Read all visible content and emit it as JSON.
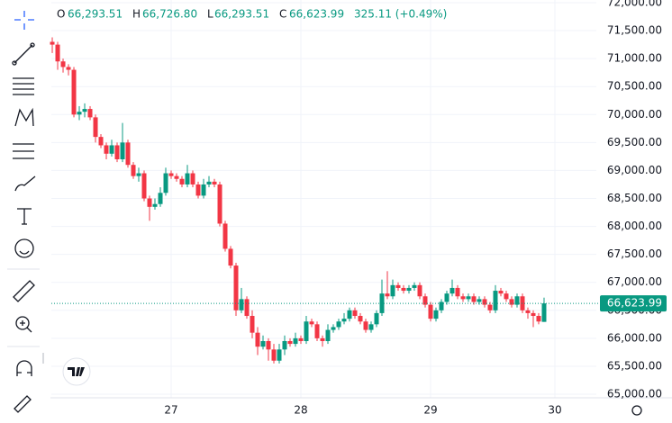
{
  "chart_data": {
    "type": "candlestick",
    "legend": {
      "open_label": "O",
      "open": "66,293.51",
      "high_label": "H",
      "high": "66,726.80",
      "low_label": "L",
      "low": "66,293.51",
      "close_label": "C",
      "close": "66,623.99",
      "change": "325.11 (+0.49%)"
    },
    "up_color": "#089981",
    "down_color": "#f23645",
    "open": [
      71300,
      71250,
      70950,
      70850,
      70800,
      70000,
      70050,
      70100,
      69950,
      69600,
      69450,
      69300,
      69450,
      69200,
      69500,
      69100,
      68900,
      68950,
      68500,
      68350,
      68400,
      68600,
      68950,
      68900,
      68850,
      68750,
      68950,
      68750,
      68550,
      68750,
      68800,
      68750,
      68050,
      67600,
      67300,
      66500,
      66700,
      66400,
      66100,
      65850,
      65950,
      65800,
      65600,
      65800,
      65950,
      65900,
      66000,
      65950,
      66300,
      66250,
      66000,
      65950,
      66150,
      66200,
      66300,
      66350,
      66500,
      66400,
      66300,
      66150,
      66250,
      66450,
      66800,
      66750,
      66950,
      66900,
      66850,
      66900,
      66950,
      66750,
      66600,
      66350,
      66500,
      66650,
      66800,
      66900,
      66750,
      66700,
      66750,
      66650,
      66700,
      66600,
      66500,
      66850,
      66800,
      66700,
      66600,
      66750,
      66500,
      66450,
      66400,
      66293.51
    ],
    "high": [
      71380,
      71300,
      71000,
      70900,
      70850,
      70150,
      70200,
      70150,
      70000,
      69650,
      69500,
      69550,
      69500,
      69850,
      69550,
      69150,
      69050,
      69000,
      68550,
      68500,
      68700,
      69050,
      69000,
      68950,
      68900,
      69100,
      69000,
      68800,
      68850,
      68900,
      68850,
      68800,
      68100,
      67650,
      67350,
      66900,
      66750,
      66500,
      66200,
      66050,
      66000,
      65900,
      65900,
      66050,
      66000,
      66100,
      66050,
      66400,
      66350,
      66300,
      66050,
      66250,
      66250,
      66350,
      66450,
      66550,
      66550,
      66450,
      66350,
      66300,
      66500,
      67050,
      67200,
      67050,
      67000,
      66950,
      66950,
      67000,
      67000,
      66800,
      66650,
      66550,
      66700,
      66850,
      67050,
      66950,
      66800,
      66800,
      66800,
      66750,
      66750,
      66650,
      66950,
      66900,
      66850,
      66750,
      66800,
      66800,
      66550,
      66500,
      66450,
      66726.8
    ],
    "low": [
      71100,
      70800,
      70750,
      70700,
      69950,
      69900,
      69950,
      69900,
      69500,
      69400,
      69200,
      69250,
      69150,
      69150,
      69050,
      68850,
      68800,
      68450,
      68100,
      68300,
      68350,
      68550,
      68850,
      68800,
      68700,
      68700,
      68700,
      68500,
      68500,
      68700,
      68700,
      68000,
      67550,
      67250,
      66400,
      66450,
      66350,
      66000,
      65700,
      65800,
      65600,
      65550,
      65550,
      65700,
      65850,
      65850,
      65900,
      65900,
      66200,
      65950,
      65850,
      65900,
      66100,
      66150,
      66250,
      66300,
      66350,
      66250,
      66100,
      66100,
      66200,
      66400,
      66700,
      66700,
      66850,
      66800,
      66800,
      66850,
      66700,
      66550,
      66300,
      66300,
      66450,
      66600,
      66750,
      66700,
      66650,
      66650,
      66600,
      66600,
      66550,
      66450,
      66450,
      66750,
      66650,
      66550,
      66550,
      66450,
      66350,
      66200,
      66250,
      66293.51
    ],
    "close": [
      71250,
      70950,
      70850,
      70800,
      70000,
      70050,
      70100,
      69950,
      69600,
      69450,
      69300,
      69450,
      69200,
      69500,
      69100,
      68900,
      68950,
      68500,
      68350,
      68400,
      68600,
      68950,
      68900,
      68850,
      68750,
      68950,
      68750,
      68550,
      68750,
      68800,
      68750,
      68050,
      67600,
      67300,
      66500,
      66700,
      66400,
      66100,
      65850,
      65950,
      65800,
      65600,
      65800,
      65950,
      65900,
      66000,
      65950,
      66300,
      66250,
      66000,
      65950,
      66150,
      66200,
      66300,
      66350,
      66500,
      66400,
      66300,
      66150,
      66250,
      66450,
      66800,
      66750,
      66950,
      66900,
      66850,
      66900,
      66950,
      66750,
      66600,
      66350,
      66500,
      66650,
      66800,
      66900,
      66750,
      66700,
      66750,
      66650,
      66700,
      66600,
      66500,
      66850,
      66800,
      66700,
      66600,
      66750,
      66500,
      66450,
      66400,
      66300,
      66623.99
    ],
    "last_price": {
      "value": 66623.99,
      "label": "66,623.99"
    },
    "xlim": [
      -0.17,
      100.67
    ],
    "xticks": [
      {
        "value": 22,
        "label": "27"
      },
      {
        "value": 46,
        "label": "28"
      },
      {
        "value": 70,
        "label": "29"
      },
      {
        "value": 93,
        "label": "30"
      }
    ],
    "ylim": [
      64936,
      72048
    ],
    "yticks": [
      {
        "value": 65000,
        "label": "65,000.00"
      },
      {
        "value": 65500,
        "label": "65,500.00"
      },
      {
        "value": 66000,
        "label": "66,000.00"
      },
      {
        "value": 66500,
        "label": "66,500.00"
      },
      {
        "value": 67000,
        "label": "67,000.00"
      },
      {
        "value": 67500,
        "label": "67,500.00"
      },
      {
        "value": 68000,
        "label": "68,000.00"
      },
      {
        "value": 68500,
        "label": "68,500.00"
      },
      {
        "value": 69000,
        "label": "69,000.00"
      },
      {
        "value": 69500,
        "label": "69,500.00"
      },
      {
        "value": 70000,
        "label": "70,000.00"
      },
      {
        "value": 70500,
        "label": "70,500.00"
      },
      {
        "value": 71000,
        "label": "71,000.00"
      },
      {
        "value": 71500,
        "label": "71,500.00"
      },
      {
        "value": 72000,
        "label": "72,000.00"
      }
    ],
    "grid": true
  }
}
